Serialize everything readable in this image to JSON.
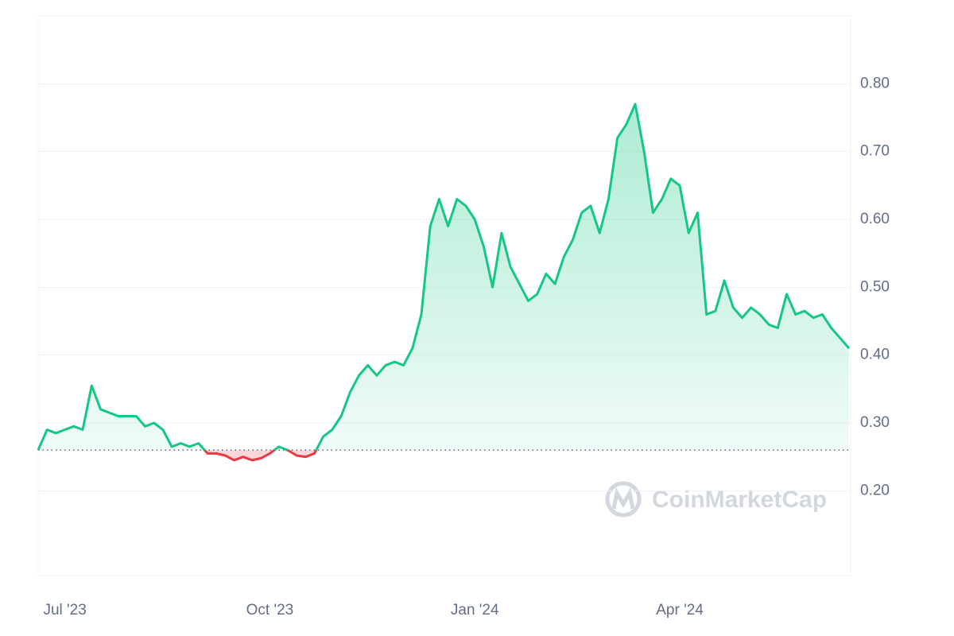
{
  "chart_data": {
    "type": "line",
    "watermark": "CoinMarketCap",
    "categories": [
      null,
      null,
      null,
      "Jul '23",
      null,
      null,
      null,
      null,
      null,
      null,
      null,
      null,
      null,
      null,
      null,
      null,
      null,
      null,
      null,
      null,
      null,
      null,
      null,
      null,
      null,
      null,
      "Oct '23",
      null,
      null,
      null,
      null,
      null,
      null,
      null,
      null,
      null,
      null,
      null,
      null,
      null,
      null,
      null,
      null,
      null,
      null,
      null,
      null,
      null,
      null,
      "Jan '24",
      null,
      null,
      null,
      null,
      null,
      null,
      null,
      null,
      null,
      null,
      null,
      null,
      null,
      null,
      null,
      null,
      null,
      null,
      null,
      null,
      null,
      null,
      "Apr '24",
      null,
      null,
      null,
      null,
      null,
      null,
      null,
      null,
      null,
      null,
      null,
      null,
      null,
      null,
      null,
      null,
      null,
      null,
      null
    ],
    "values": [
      0.26,
      0.29,
      0.285,
      0.29,
      0.295,
      0.29,
      0.355,
      0.32,
      0.315,
      0.31,
      0.31,
      0.31,
      0.295,
      0.3,
      0.29,
      0.265,
      0.27,
      0.265,
      0.27,
      0.255,
      0.255,
      0.252,
      0.245,
      0.25,
      0.245,
      0.248,
      0.255,
      0.265,
      0.26,
      0.252,
      0.25,
      0.255,
      0.28,
      0.29,
      0.31,
      0.345,
      0.37,
      0.385,
      0.37,
      0.385,
      0.39,
      0.385,
      0.41,
      0.46,
      0.59,
      0.63,
      0.59,
      0.63,
      0.62,
      0.6,
      0.56,
      0.5,
      0.58,
      0.53,
      0.505,
      0.48,
      0.49,
      0.52,
      0.505,
      0.545,
      0.57,
      0.61,
      0.62,
      0.58,
      0.63,
      0.72,
      0.74,
      0.77,
      0.7,
      0.61,
      0.63,
      0.66,
      0.65,
      0.58,
      0.61,
      0.46,
      0.465,
      0.51,
      0.47,
      0.455,
      0.47,
      0.46,
      0.445,
      0.44,
      0.49,
      0.46,
      0.465,
      0.455,
      0.46,
      0.44,
      0.425,
      0.41
    ],
    "baseline": 0.26,
    "up_color": "#16c784",
    "down_color": "#ea3943",
    "ylim": [
      0.075,
      0.9
    ],
    "yticks": [
      {
        "value": 0.2,
        "label": "0.20"
      },
      {
        "value": 0.3,
        "label": "0.30"
      },
      {
        "value": 0.4,
        "label": "0.40"
      },
      {
        "value": 0.5,
        "label": "0.50"
      },
      {
        "value": 0.6,
        "label": "0.60"
      },
      {
        "value": 0.7,
        "label": "0.70"
      },
      {
        "value": 0.8,
        "label": "0.80"
      }
    ],
    "grid": true,
    "y_axis_side": "right"
  }
}
